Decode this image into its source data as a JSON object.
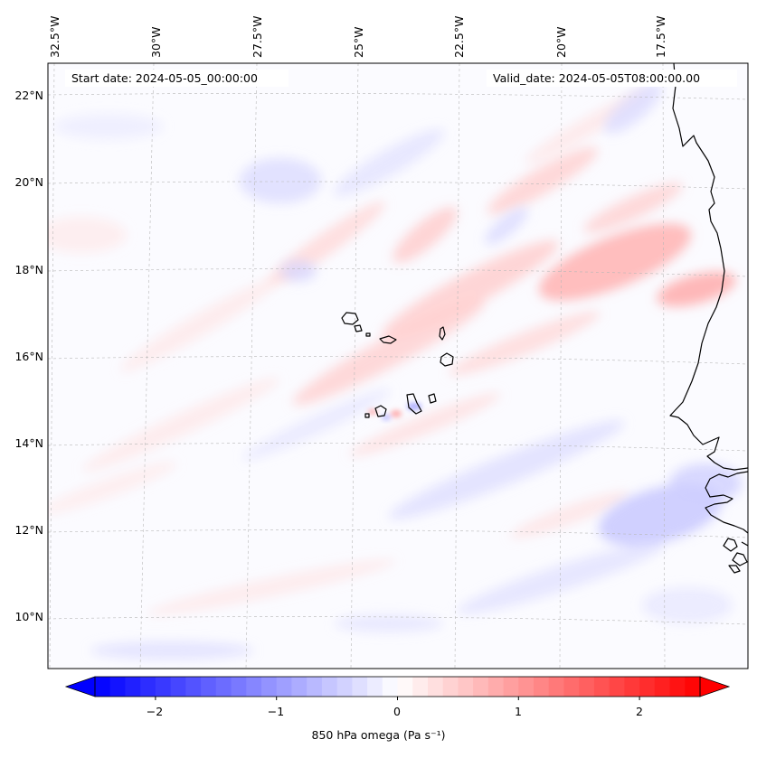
{
  "header": {
    "start_date": "Start date: 2024-05-05_00:00:00",
    "valid_date": "Valid_date: 2024-05-05T08:00:00.00"
  },
  "map": {
    "longitude_labels": [
      "32.5°W",
      "30°W",
      "27.5°W",
      "25°W",
      "22.5°W",
      "20°W",
      "17.5°W"
    ],
    "latitude_labels": [
      "22°N",
      "20°N",
      "18°N",
      "16°N",
      "14°N",
      "12°N",
      "10°N"
    ],
    "variable": "850 hPa omega",
    "units": "Pa s⁻¹"
  },
  "colorbar": {
    "min": -2.5,
    "max": 2.5,
    "ticks": [
      "−2",
      "−1",
      "0",
      "1",
      "2"
    ],
    "tick_values": [
      -2,
      -1,
      0,
      1,
      2
    ],
    "label": "850 hPa omega (Pa s⁻¹)",
    "colors": {
      "negative": "#0000ff",
      "zero": "#ffffff",
      "positive": "#ff0000"
    }
  }
}
